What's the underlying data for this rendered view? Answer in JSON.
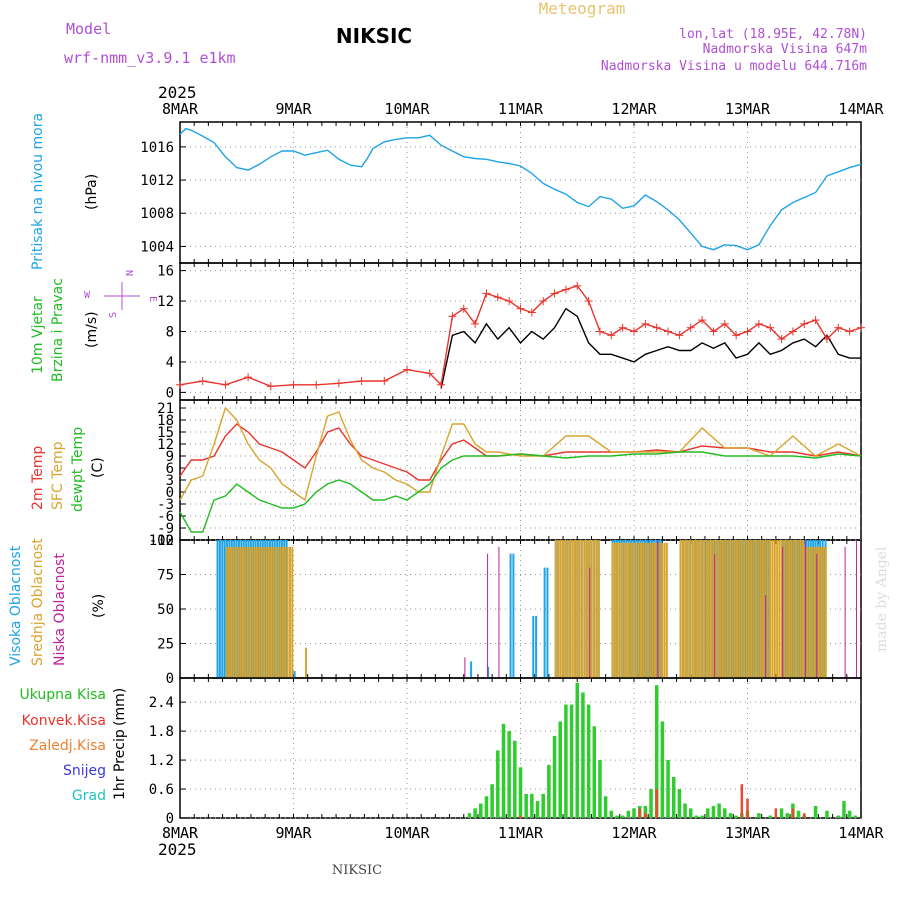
{
  "header": {
    "model_label": "Model",
    "model_name": "wrf-nmm_v3.9.1 e1km",
    "station": "NIKSIC",
    "product": "Meteogram",
    "coords": "lon,lat (18.95E, 42.78N)",
    "altitude": "Nadmorska Visina 647m",
    "model_altitude": "Nadmorska Visina u modelu 644.716m",
    "footer_station": "NIKSIC",
    "credit": "made by Angel"
  },
  "colors": {
    "pressure": "#1fa3e6",
    "wind_speed": "#000000",
    "wind_gust": "#e8342c",
    "temp_2m": "#e8342c",
    "temp_sfc": "#d9a32e",
    "temp_dew": "#22bb22",
    "cloud_high": "#1fa3e6",
    "cloud_mid": "#d9a32e",
    "cloud_low": "#c01f9a",
    "precip_total": "#2ecc2e",
    "precip_conv": "#e84a30",
    "precip_frz": "#f08030",
    "precip_snow": "#3a3ae0",
    "precip_hail": "#22c2c2"
  },
  "time_axis": {
    "year": "2025",
    "labels": [
      "8MAR",
      "9MAR",
      "10MAR",
      "11MAR",
      "12MAR",
      "13MAR",
      "14MAR"
    ],
    "days": 6
  },
  "chart_data": [
    {
      "type": "line",
      "title": "",
      "ylabel": "Pritisak na nivou mora",
      "unit": "(hPa)",
      "yticks": [
        1004,
        1008,
        1012,
        1016
      ],
      "ylim": [
        1002,
        1019
      ],
      "series": [
        {
          "key": "pressure",
          "x": [
            0,
            0.05,
            0.1,
            0.2,
            0.3,
            0.4,
            0.5,
            0.6,
            0.7,
            0.8,
            0.9,
            1.0,
            1.1,
            1.2,
            1.3,
            1.4,
            1.5,
            1.6,
            1.65,
            1.7,
            1.8,
            1.9,
            2.0,
            2.1,
            2.2,
            2.25,
            2.3,
            2.4,
            2.5,
            2.6,
            2.7,
            2.8,
            2.9,
            3.0,
            3.1,
            3.2,
            3.3,
            3.4,
            3.5,
            3.6,
            3.7,
            3.8,
            3.9,
            4.0,
            4.1,
            4.2,
            4.3,
            4.4,
            4.5,
            4.6,
            4.7,
            4.8,
            4.9,
            5.0,
            5.1,
            5.2,
            5.3,
            5.4,
            5.5,
            5.6,
            5.7,
            5.8,
            5.9,
            6.0
          ],
          "values": [
            1017.5,
            1018.2,
            1018.0,
            1017.3,
            1016.5,
            1014.8,
            1013.5,
            1013.2,
            1013.9,
            1014.8,
            1015.5,
            1015.5,
            1015.0,
            1015.3,
            1015.6,
            1014.5,
            1013.8,
            1013.6,
            1014.6,
            1015.8,
            1016.6,
            1016.9,
            1017.1,
            1017.1,
            1017.4,
            1016.8,
            1016.2,
            1015.5,
            1014.8,
            1014.6,
            1014.5,
            1014.2,
            1014.0,
            1013.7,
            1012.8,
            1011.6,
            1010.9,
            1010.3,
            1009.3,
            1008.8,
            1010.0,
            1009.7,
            1008.6,
            1008.9,
            1010.2,
            1009.4,
            1008.4,
            1007.2,
            1005.6,
            1004.0,
            1003.6,
            1004.2,
            1004.1,
            1003.6,
            1004.2,
            1006.5,
            1008.4,
            1009.3,
            1009.9,
            1010.5,
            1012.5,
            1013.0,
            1013.5,
            1013.9
          ]
        }
      ]
    },
    {
      "type": "line",
      "title": "",
      "ylabel": "10m Vjetar Brzina i Pravac",
      "unit": "(m/s)",
      "compass": [
        "N",
        "E",
        "S",
        "W"
      ],
      "yticks": [
        0,
        4,
        8,
        12,
        16
      ],
      "ylim": [
        -1,
        17
      ],
      "series": [
        {
          "key": "wind_speed",
          "x": [
            2.3,
            2.4,
            2.5,
            2.6,
            2.7,
            2.8,
            2.9,
            3.0,
            3.1,
            3.2,
            3.3,
            3.4,
            3.5,
            3.6,
            3.7,
            3.8,
            3.9,
            4.0,
            4.1,
            4.2,
            4.3,
            4.4,
            4.5,
            4.6,
            4.7,
            4.8,
            4.9,
            5.0,
            5.1,
            5.2,
            5.3,
            5.4,
            5.5,
            5.6,
            5.7,
            5.8,
            5.9,
            6.0
          ],
          "values": [
            0.5,
            7.5,
            8.0,
            6.5,
            9.0,
            7.0,
            8.5,
            6.5,
            8.0,
            7.0,
            8.5,
            11.0,
            10.0,
            6.5,
            5.0,
            5.0,
            4.5,
            4.0,
            5.0,
            5.5,
            6.0,
            5.5,
            5.5,
            6.5,
            5.8,
            6.5,
            4.5,
            5.0,
            6.5,
            5.0,
            5.5,
            6.5,
            7.0,
            6.0,
            7.5,
            5.0,
            4.5,
            4.5
          ]
        },
        {
          "key": "wind_gust",
          "x": [
            0,
            0.2,
            0.4,
            0.6,
            0.8,
            1.0,
            1.2,
            1.4,
            1.6,
            1.8,
            2.0,
            2.2,
            2.3,
            2.4,
            2.5,
            2.6,
            2.7,
            2.8,
            2.9,
            3.0,
            3.1,
            3.2,
            3.3,
            3.4,
            3.5,
            3.6,
            3.7,
            3.8,
            3.9,
            4.0,
            4.1,
            4.2,
            4.3,
            4.4,
            4.5,
            4.6,
            4.7,
            4.8,
            4.9,
            5.0,
            5.1,
            5.2,
            5.3,
            5.4,
            5.5,
            5.6,
            5.7,
            5.8,
            5.9,
            6.0
          ],
          "values": [
            1.0,
            1.5,
            1.0,
            2.0,
            0.8,
            1.0,
            1.0,
            1.2,
            1.5,
            1.5,
            3.0,
            2.5,
            1.0,
            10.0,
            11.0,
            9.0,
            13.0,
            12.5,
            12.0,
            11.0,
            10.5,
            12.0,
            13.0,
            13.5,
            14.0,
            12.0,
            8.0,
            7.5,
            8.5,
            8.0,
            9.0,
            8.5,
            8.0,
            7.5,
            8.5,
            9.5,
            8.0,
            9.0,
            7.5,
            8.0,
            9.0,
            8.5,
            7.0,
            8.0,
            9.0,
            9.5,
            7.0,
            8.5,
            8.0,
            8.5
          ]
        }
      ]
    },
    {
      "type": "line",
      "title": "",
      "ylabel": "2m Temp, SFC Temp, dewpt Temp",
      "unit": "(C)",
      "yticks": [
        -12,
        -9,
        -6,
        -3,
        0,
        3,
        6,
        9,
        12,
        15,
        18,
        21
      ],
      "ylim": [
        -12,
        23
      ],
      "series": [
        {
          "key": "temp_2m",
          "name": "2m Temp",
          "x": [
            0,
            0.1,
            0.2,
            0.3,
            0.4,
            0.5,
            0.6,
            0.7,
            0.8,
            0.9,
            1.0,
            1.1,
            1.2,
            1.3,
            1.4,
            1.5,
            1.6,
            1.7,
            1.8,
            1.9,
            2.0,
            2.1,
            2.2,
            2.3,
            2.4,
            2.5,
            2.6,
            2.7,
            2.8,
            3.0,
            3.2,
            3.4,
            3.6,
            3.8,
            4.0,
            4.2,
            4.4,
            4.6,
            4.8,
            5.0,
            5.2,
            5.4,
            5.6,
            5.8,
            6.0
          ],
          "values": [
            4,
            8,
            8,
            9,
            14,
            17,
            15,
            12,
            11,
            10,
            8,
            6,
            10,
            15,
            16,
            12,
            9,
            8,
            7,
            6,
            5,
            3,
            3,
            8,
            12,
            13,
            11,
            9,
            9,
            9.5,
            9,
            10,
            10,
            10,
            10,
            10.5,
            10,
            11.5,
            11,
            11,
            10,
            10,
            9,
            10,
            9
          ]
        },
        {
          "key": "temp_sfc",
          "name": "SFC Temp",
          "x": [
            0,
            0.1,
            0.2,
            0.3,
            0.4,
            0.5,
            0.6,
            0.7,
            0.8,
            0.9,
            1.0,
            1.1,
            1.2,
            1.3,
            1.4,
            1.5,
            1.6,
            1.7,
            1.8,
            1.9,
            2.0,
            2.1,
            2.2,
            2.3,
            2.4,
            2.5,
            2.6,
            2.7,
            2.8,
            3.0,
            3.2,
            3.4,
            3.6,
            3.8,
            4.0,
            4.2,
            4.4,
            4.6,
            4.8,
            5.0,
            5.2,
            5.4,
            5.6,
            5.8,
            6.0
          ],
          "values": [
            -2,
            3,
            4,
            12,
            21,
            18,
            12,
            8,
            6,
            2,
            0,
            -2,
            9,
            19,
            20,
            13,
            8,
            6,
            5,
            3,
            2,
            0,
            0,
            9,
            17,
            17,
            12,
            10,
            10,
            9,
            9,
            14,
            14,
            10,
            10,
            10,
            10,
            16,
            11,
            11,
            9,
            14,
            9,
            12,
            9
          ]
        },
        {
          "key": "temp_dew",
          "name": "dewpt Temp",
          "x": [
            0,
            0.1,
            0.2,
            0.3,
            0.4,
            0.5,
            0.6,
            0.7,
            0.8,
            0.9,
            1.0,
            1.1,
            1.2,
            1.3,
            1.4,
            1.5,
            1.6,
            1.7,
            1.8,
            1.9,
            2.0,
            2.1,
            2.2,
            2.3,
            2.4,
            2.5,
            2.6,
            2.7,
            2.8,
            3.0,
            3.2,
            3.4,
            3.6,
            3.8,
            4.0,
            4.2,
            4.4,
            4.6,
            4.8,
            5.0,
            5.2,
            5.4,
            5.6,
            5.8,
            6.0
          ],
          "values": [
            -5,
            -10,
            -10,
            -2,
            -1,
            2,
            0,
            -2,
            -3,
            -4,
            -4,
            -3,
            0,
            2,
            3,
            2,
            0,
            -2,
            -2,
            -1,
            -2,
            0,
            2,
            6,
            8,
            9,
            9,
            9,
            9,
            9.5,
            9,
            8.5,
            9,
            9,
            9.5,
            9.5,
            10,
            10,
            9,
            9,
            9,
            9,
            8.5,
            9.5,
            9
          ]
        }
      ]
    },
    {
      "type": "bar",
      "title": "",
      "ylabel": "Visoka Oblacnost, Srednja Oblacnost, Niska Oblacnost",
      "unit": "(%)",
      "yticks": [
        0,
        25,
        50,
        75,
        100
      ],
      "ylim": [
        0,
        100
      ],
      "series": [
        {
          "key": "cloud_high",
          "name": "Visoka Oblacnost",
          "segments": [
            [
              0.32,
              0.95,
              100
            ],
            [
              1.0,
              1.02,
              5
            ],
            [
              2.55,
              2.58,
              12
            ],
            [
              2.7,
              2.73,
              8
            ],
            [
              2.9,
              2.95,
              90
            ],
            [
              3.1,
              3.15,
              45
            ],
            [
              3.2,
              3.25,
              80
            ],
            [
              3.3,
              3.7,
              100
            ],
            [
              3.8,
              4.25,
              100
            ],
            [
              4.4,
              5.2,
              100
            ],
            [
              5.3,
              5.65,
              100
            ],
            [
              5.65,
              5.7,
              100
            ]
          ]
        },
        {
          "key": "cloud_mid",
          "name": "Srednja Oblacnost",
          "segments": [
            [
              0.4,
              1.0,
              95
            ],
            [
              1.1,
              1.12,
              22
            ],
            [
              3.3,
              3.7,
              100
            ],
            [
              3.8,
              4.3,
              98
            ],
            [
              4.4,
              5.5,
              100
            ],
            [
              5.5,
              5.7,
              95
            ]
          ]
        },
        {
          "key": "cloud_low",
          "name": "Niska Oblacnost",
          "segments": [
            [
              2.5,
              2.52,
              15
            ],
            [
              2.7,
              2.72,
              90
            ],
            [
              2.8,
              2.82,
              95
            ],
            [
              3.6,
              3.62,
              80
            ],
            [
              4.2,
              4.22,
              100
            ],
            [
              4.7,
              4.72,
              90
            ],
            [
              5.15,
              5.17,
              60
            ],
            [
              5.3,
              5.32,
              95
            ],
            [
              5.5,
              5.52,
              100
            ],
            [
              5.6,
              5.62,
              90
            ],
            [
              5.85,
              5.87,
              95
            ],
            [
              5.95,
              5.97,
              100
            ]
          ]
        }
      ]
    },
    {
      "type": "bar",
      "title": "",
      "ylabel": "1hr Precip",
      "unit": "(mm)",
      "legend": [
        "Ukupna Kisa",
        "Konvek.Kisa",
        "Zaledj.Kisa",
        "Snijeg",
        "Grad"
      ],
      "yticks": [
        0,
        0.6,
        1.2,
        1.8,
        2.4
      ],
      "ylim": [
        0,
        2.9
      ],
      "series": [
        {
          "key": "precip_total",
          "name": "Ukupna Kisa",
          "x": [
            2.55,
            2.6,
            2.65,
            2.7,
            2.75,
            2.8,
            2.85,
            2.9,
            2.95,
            3.0,
            3.05,
            3.1,
            3.15,
            3.2,
            3.25,
            3.3,
            3.35,
            3.4,
            3.45,
            3.5,
            3.55,
            3.6,
            3.65,
            3.7,
            3.75,
            3.8,
            3.85,
            3.9,
            3.95,
            4.0,
            4.05,
            4.1,
            4.15,
            4.2,
            4.25,
            4.3,
            4.35,
            4.4,
            4.45,
            4.5,
            4.55,
            4.6,
            4.65,
            4.7,
            4.75,
            4.8,
            4.85,
            4.9,
            4.95,
            5.0,
            5.1,
            5.2,
            5.3,
            5.35,
            5.4,
            5.45,
            5.5,
            5.6,
            5.7,
            5.8,
            5.85,
            5.9,
            5.95
          ],
          "values": [
            0.1,
            0.2,
            0.3,
            0.45,
            0.7,
            1.4,
            1.95,
            1.8,
            1.6,
            1.05,
            0.5,
            0.5,
            0.35,
            0.5,
            1.1,
            1.7,
            2.0,
            2.35,
            2.35,
            2.8,
            2.6,
            2.35,
            1.9,
            1.2,
            0.45,
            0.15,
            0.05,
            0.05,
            0.15,
            0.2,
            0.25,
            0.25,
            0.6,
            2.75,
            2.0,
            1.2,
            0.85,
            0.6,
            0.3,
            0.2,
            0.05,
            0.05,
            0.2,
            0.25,
            0.3,
            0.2,
            0.1,
            0.05,
            0.1,
            0.15,
            0.1,
            0.05,
            0.2,
            0.1,
            0.3,
            0.15,
            0.05,
            0.25,
            0.15,
            0.05,
            0.35,
            0.15,
            0.05
          ]
        },
        {
          "key": "precip_conv",
          "name": "Konvek.Kisa",
          "x": [
            3.0,
            4.05,
            4.1,
            4.2,
            4.95,
            5.0,
            5.25,
            5.4,
            5.5
          ],
          "values": [
            0.05,
            0.2,
            0.1,
            0.6,
            0.7,
            0.4,
            0.2,
            0.2,
            0.1
          ]
        }
      ]
    }
  ]
}
